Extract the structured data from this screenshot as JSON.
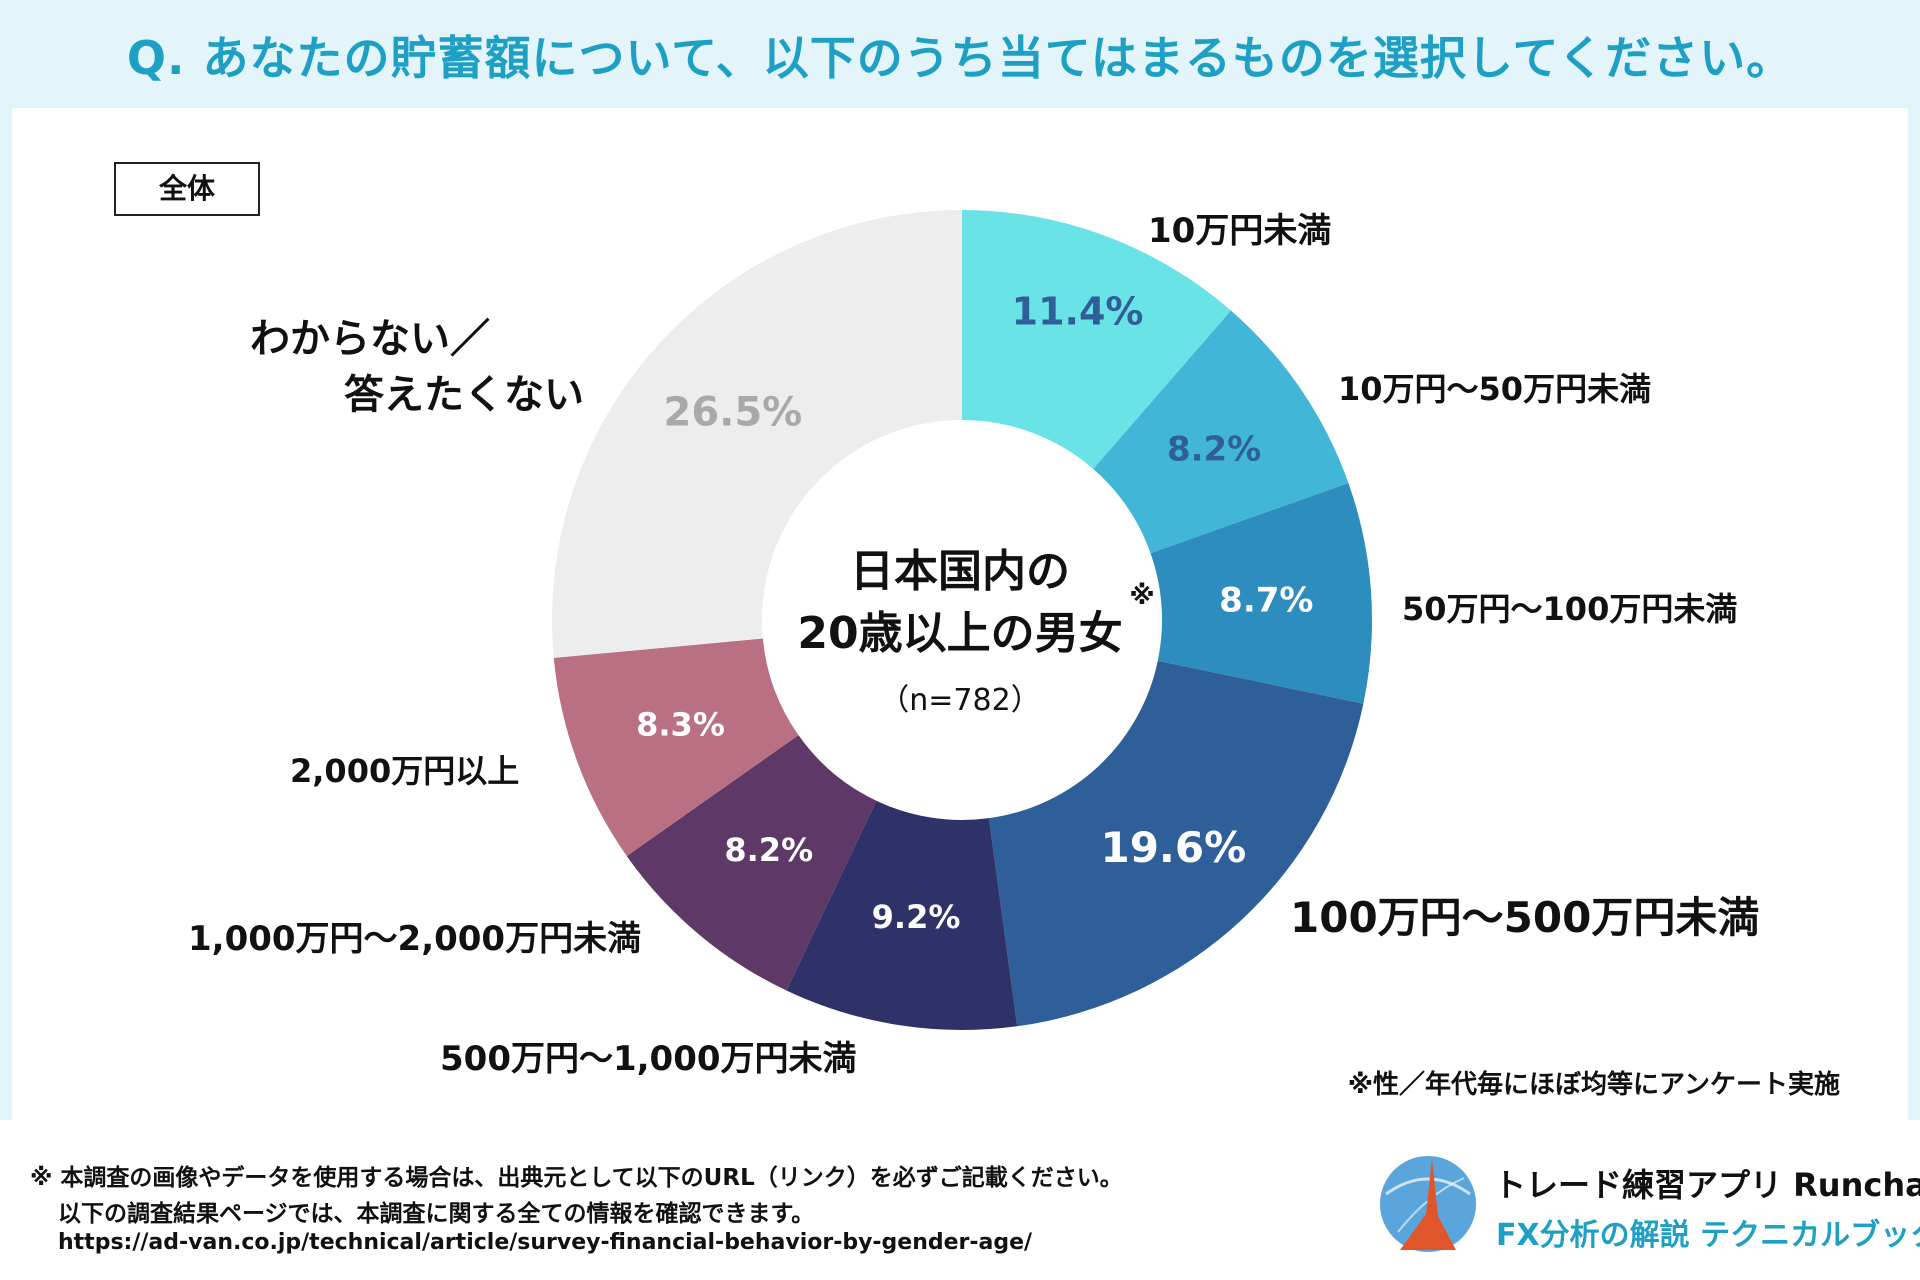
{
  "title": "Q. あなたの貯蓄額について、以下のうち当てはまるものを選択してください。",
  "scope_label": "全体",
  "chart_data": {
    "type": "pie",
    "donut": true,
    "categories": [
      "10万円未満",
      "10万円～50万円未満",
      "50万円～100万円未満",
      "100万円～500万円未満",
      "500万円～1,000万円未満",
      "1,000万円～2,000万円未満",
      "2,000万円以上",
      "わからない／答えたくない"
    ],
    "values": [
      11.4,
      8.2,
      8.7,
      19.6,
      9.2,
      8.2,
      8.3,
      26.5
    ],
    "value_labels": [
      "11.4%",
      "8.2%",
      "8.7%",
      "19.6%",
      "9.2%",
      "8.2%",
      "8.3%",
      "26.5%"
    ],
    "colors": [
      "#6ae3e7",
      "#42b6d7",
      "#2d8dbe",
      "#2e5f98",
      "#2f3268",
      "#5e3866",
      "#b87082",
      "#ededee"
    ],
    "label_colors": [
      "#2e5f98",
      "#2e5f98",
      "#ffffff",
      "#ffffff",
      "#ffffff",
      "#ffffff",
      "#ffffff",
      "#a9a9a9"
    ],
    "center_title_line1": "日本国内の",
    "center_title_line2": "20歳以上の男女",
    "center_mark": "※",
    "center_n": "（n=782）"
  },
  "survey_note": "※性／年代毎にほぼ均等にアンケート実施",
  "footer": {
    "note_line1": "※ 本調査の画像やデータを使用する場合は、出典元として以下のURL（リンク）を必ずご記載ください。",
    "note_line2": "以下の調査結果ページでは、本調査に関する全ての情報を確認できます。",
    "url": "https://ad-van.co.jp/technical/article/survey-financial-behavior-by-gender-age/",
    "brand_line1": "トレード練習アプリ Runcha",
    "brand_line2": "FX分析の解説 テクニカルブック",
    "logo_icon": "runcha-logo-icon"
  },
  "accent_color": "#1e9fc4"
}
